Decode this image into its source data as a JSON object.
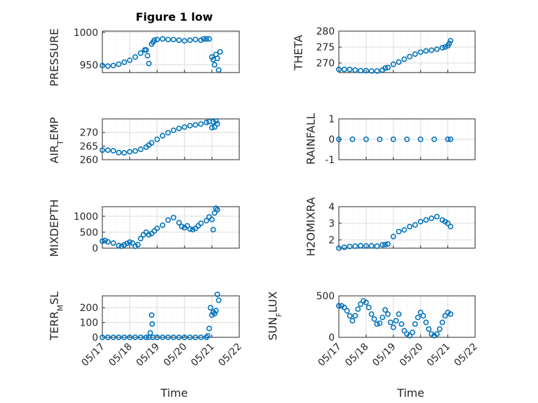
{
  "figure": {
    "title": "Figure 1 low"
  },
  "colors": {
    "marker": "#0072BD",
    "axis": "#262626",
    "grid": "#dcdcdc",
    "minorGrid": "#ececec"
  },
  "chart_data": [
    {
      "type": "scatter",
      "ylabel": "PRESSURE",
      "ylim": [
        938,
        1002
      ],
      "yticks": [
        950,
        1000
      ],
      "xlim": [
        "05/17",
        "05/22"
      ],
      "xticks": [
        "05/17",
        "05/18",
        "05/19",
        "05/20",
        "05/21",
        "05/22"
      ],
      "xtick_labels_shown": false,
      "grid": true,
      "series": [
        {
          "x": [
            0.0,
            0.2,
            0.4,
            0.6,
            0.8,
            1.0,
            1.2,
            1.4,
            1.55,
            1.6,
            1.65,
            1.7,
            1.8,
            1.85,
            1.9,
            2.0,
            2.2,
            2.4,
            2.6,
            2.8,
            3.0,
            3.2,
            3.4,
            3.6,
            3.7,
            3.8,
            3.9,
            4.0,
            4.05,
            4.1,
            4.15,
            4.2,
            4.25,
            4.3
          ],
          "y": [
            949,
            948,
            949,
            951,
            954,
            957,
            962,
            968,
            973,
            973,
            964,
            952,
            982,
            985,
            988,
            989,
            990,
            989,
            989,
            988,
            987,
            988,
            989,
            988,
            990,
            990,
            990,
            962,
            958,
            950,
            966,
            960,
            942,
            970
          ]
        }
      ]
    },
    {
      "type": "scatter",
      "ylabel": "THETA",
      "ylim": [
        267,
        280
      ],
      "yticks": [
        270,
        275,
        280
      ],
      "xlim": [
        "05/17",
        "05/22"
      ],
      "xticks": [
        "05/17",
        "05/18",
        "05/19",
        "05/20",
        "05/21",
        "05/22"
      ],
      "xtick_labels_shown": false,
      "grid": true,
      "series": [
        {
          "x": [
            0.0,
            0.2,
            0.4,
            0.6,
            0.8,
            1.0,
            1.2,
            1.4,
            1.6,
            1.7,
            1.8,
            2.0,
            2.2,
            2.4,
            2.6,
            2.8,
            3.0,
            3.2,
            3.4,
            3.6,
            3.8,
            3.9,
            4.0,
            4.05,
            4.1
          ],
          "y": [
            268,
            268,
            268,
            267.8,
            267.6,
            267.6,
            267.5,
            267.5,
            267.8,
            268.4,
            268.6,
            269.6,
            270.3,
            271.2,
            272.0,
            272.8,
            273.4,
            273.8,
            274.0,
            274.3,
            274.8,
            275.0,
            275.4,
            276.1,
            277.0
          ]
        }
      ]
    },
    {
      "type": "scatter",
      "ylabel": "AIR_TEMP",
      "ylim": [
        260,
        275
      ],
      "yticks": [
        260,
        265,
        270
      ],
      "xlim": [
        "05/17",
        "05/22"
      ],
      "xticks": [
        "05/17",
        "05/18",
        "05/19",
        "05/20",
        "05/21",
        "05/22"
      ],
      "xtick_labels_shown": false,
      "grid": true,
      "series": [
        {
          "x": [
            0.0,
            0.2,
            0.4,
            0.6,
            0.8,
            1.0,
            1.2,
            1.4,
            1.6,
            1.7,
            1.8,
            2.0,
            2.2,
            2.4,
            2.6,
            2.8,
            3.0,
            3.2,
            3.4,
            3.6,
            3.8,
            3.9,
            4.0,
            4.05,
            4.1,
            4.15,
            4.2
          ],
          "y": [
            263.5,
            263.5,
            263.3,
            262.6,
            262.5,
            262.9,
            263.2,
            263.8,
            264.6,
            265.4,
            266.2,
            267.5,
            268.8,
            269.9,
            270.8,
            271.5,
            272.0,
            272.5,
            272.8,
            273.1,
            273.7,
            274.0,
            271.8,
            273.9,
            272.0,
            274.2,
            273.2
          ]
        }
      ]
    },
    {
      "type": "scatter",
      "ylabel": "RAINFALL",
      "ylim": [
        -1,
        1
      ],
      "yticks": [
        -1,
        0,
        1
      ],
      "xlim": [
        "05/17",
        "05/22"
      ],
      "xticks": [
        "05/17",
        "05/18",
        "05/19",
        "05/20",
        "05/21",
        "05/22"
      ],
      "xtick_labels_shown": false,
      "grid": true,
      "series": [
        {
          "x": [
            0.0,
            0.5,
            1.0,
            1.5,
            2.0,
            2.5,
            3.0,
            3.5,
            4.0,
            4.1
          ],
          "y": [
            0,
            0,
            0,
            0,
            0,
            0,
            0,
            0,
            0,
            0
          ]
        }
      ]
    },
    {
      "type": "scatter",
      "ylabel": "MIXDEPTH",
      "ylim": [
        0,
        1300
      ],
      "yticks": [
        0,
        500,
        1000
      ],
      "xlim": [
        "05/17",
        "05/22"
      ],
      "xticks": [
        "05/17",
        "05/18",
        "05/19",
        "05/20",
        "05/21",
        "05/22"
      ],
      "xtick_labels_shown": false,
      "grid": true,
      "series": [
        {
          "x": [
            0.0,
            0.1,
            0.2,
            0.4,
            0.6,
            0.7,
            0.8,
            0.9,
            1.0,
            1.1,
            1.2,
            1.3,
            1.4,
            1.5,
            1.6,
            1.7,
            1.8,
            1.9,
            2.0,
            2.2,
            2.4,
            2.6,
            2.8,
            2.9,
            3.0,
            3.1,
            3.2,
            3.3,
            3.4,
            3.5,
            3.6,
            3.8,
            3.9,
            4.0,
            4.05,
            4.1,
            4.15,
            4.2
          ],
          "y": [
            220,
            240,
            200,
            160,
            80,
            60,
            100,
            150,
            190,
            160,
            60,
            110,
            300,
            420,
            500,
            420,
            460,
            540,
            620,
            720,
            880,
            960,
            800,
            680,
            640,
            700,
            600,
            580,
            620,
            700,
            780,
            860,
            980,
            900,
            580,
            1100,
            1250,
            1200
          ]
        }
      ]
    },
    {
      "type": "scatter",
      "ylabel": "H2OMIXRA",
      "ylim": [
        1.5,
        4
      ],
      "yticks": [
        2,
        3,
        4
      ],
      "xlim": [
        "05/17",
        "05/22"
      ],
      "xticks": [
        "05/17",
        "05/18",
        "05/19",
        "05/20",
        "05/21",
        "05/22"
      ],
      "xtick_labels_shown": false,
      "grid": true,
      "series": [
        {
          "x": [
            0.0,
            0.2,
            0.4,
            0.6,
            0.8,
            1.0,
            1.2,
            1.4,
            1.6,
            1.7,
            1.8,
            2.0,
            2.2,
            2.4,
            2.6,
            2.8,
            3.0,
            3.2,
            3.4,
            3.6,
            3.8,
            3.9,
            4.0,
            4.1
          ],
          "y": [
            1.5,
            1.55,
            1.6,
            1.62,
            1.65,
            1.63,
            1.64,
            1.62,
            1.7,
            1.72,
            1.75,
            2.2,
            2.5,
            2.6,
            2.8,
            2.9,
            3.1,
            3.2,
            3.3,
            3.4,
            3.2,
            3.1,
            3.0,
            2.8
          ]
        }
      ]
    },
    {
      "type": "scatter",
      "ylabel": "TERR_MSL",
      "ylim": [
        0,
        280
      ],
      "yticks": [
        0,
        100,
        200
      ],
      "xlim": [
        "05/17",
        "05/22"
      ],
      "xticks": [
        "05/17",
        "05/18",
        "05/19",
        "05/20",
        "05/21",
        "05/22"
      ],
      "xtick_labels_shown": true,
      "grid": true,
      "series": [
        {
          "x": [
            0.0,
            0.2,
            0.4,
            0.6,
            0.8,
            1.0,
            1.2,
            1.4,
            1.6,
            1.7,
            1.75,
            1.8,
            1.82,
            1.85,
            2.0,
            2.2,
            2.4,
            2.6,
            2.8,
            3.0,
            3.2,
            3.4,
            3.6,
            3.8,
            3.85,
            3.9,
            3.95,
            4.0,
            4.05,
            4.1,
            4.15,
            4.2,
            4.25
          ],
          "y": [
            0,
            0,
            0,
            0,
            0,
            0,
            0,
            0,
            0,
            0,
            30,
            150,
            90,
            0,
            0,
            0,
            0,
            0,
            0,
            0,
            0,
            0,
            0,
            0,
            10,
            60,
            200,
            150,
            170,
            160,
            180,
            290,
            250
          ]
        }
      ]
    },
    {
      "type": "scatter",
      "ylabel": "SUN_FLUX",
      "ylim": [
        0,
        500
      ],
      "yticks": [
        0,
        500
      ],
      "xlim": [
        "05/17",
        "05/22"
      ],
      "xticks": [
        "05/17",
        "05/18",
        "05/19",
        "05/20",
        "05/21",
        "05/22"
      ],
      "xtick_labels_shown": true,
      "grid": true,
      "series": [
        {
          "x": [
            0.0,
            0.1,
            0.2,
            0.3,
            0.4,
            0.5,
            0.6,
            0.7,
            0.8,
            0.9,
            1.0,
            1.1,
            1.2,
            1.3,
            1.4,
            1.5,
            1.6,
            1.7,
            1.8,
            1.9,
            2.0,
            2.1,
            2.2,
            2.3,
            2.4,
            2.5,
            2.6,
            2.7,
            2.8,
            2.9,
            3.0,
            3.1,
            3.2,
            3.3,
            3.4,
            3.5,
            3.6,
            3.7,
            3.8,
            3.9,
            4.0,
            4.1
          ],
          "y": [
            380,
            380,
            360,
            320,
            260,
            200,
            260,
            340,
            400,
            440,
            420,
            360,
            280,
            220,
            160,
            170,
            240,
            330,
            280,
            180,
            120,
            200,
            280,
            160,
            80,
            40,
            20,
            60,
            160,
            240,
            300,
            260,
            180,
            100,
            40,
            20,
            40,
            100,
            180,
            260,
            300,
            280
          ]
        }
      ]
    }
  ],
  "xlabels": {
    "left": "Time",
    "right": "Time"
  }
}
